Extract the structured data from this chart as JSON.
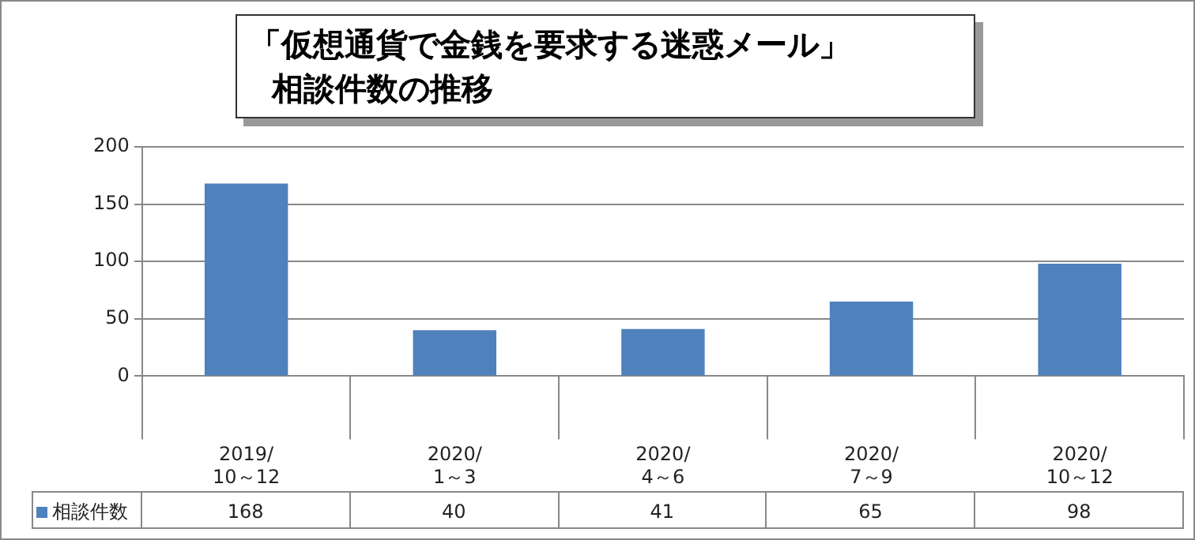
{
  "chart_data": {
    "type": "bar",
    "title": "「仮想通貨で金銭を要求する迷惑メール」",
    "subtitle": "相談件数の推移",
    "categories": [
      "2019/10～12",
      "2020/1～3",
      "2020/4～6",
      "2020/7～9",
      "2020/10～12"
    ],
    "series": [
      {
        "name": "相談件数",
        "color": "#4f81bd",
        "values": [
          168,
          40,
          41,
          65,
          98
        ]
      }
    ],
    "ylim": [
      0,
      200
    ],
    "yticks": [
      0,
      50,
      100,
      150,
      200
    ],
    "grid": "y",
    "legend": "bottom",
    "data_labels": true
  }
}
